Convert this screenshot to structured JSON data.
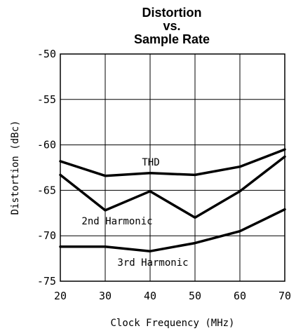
{
  "chart_data": {
    "type": "line",
    "title": [
      "Distortion",
      "vs.",
      "Sample Rate"
    ],
    "xlabel": "Clock Frequency (MHz)",
    "ylabel": "Distortion (dBc)",
    "x": [
      20,
      30,
      40,
      50,
      60,
      70
    ],
    "xlim": [
      20,
      70
    ],
    "ylim": [
      -75,
      -50
    ],
    "x_ticks": [
      "20",
      "30",
      "40",
      "50",
      "60",
      "70"
    ],
    "y_ticks": [
      "-50",
      "-55",
      "-60",
      "-65",
      "-70",
      "-75"
    ],
    "grid": true,
    "series": [
      {
        "name": "THD",
        "values": [
          -61.8,
          -63.4,
          -63.1,
          -63.3,
          -62.4,
          -60.5
        ]
      },
      {
        "name": "2nd Harmonic",
        "values": [
          -63.3,
          -67.2,
          -65.1,
          -68.0,
          -65.1,
          -61.3
        ]
      },
      {
        "name": "3rd Harmonic",
        "values": [
          -71.2,
          -71.2,
          -71.7,
          -70.8,
          -69.5,
          -67.1
        ]
      }
    ],
    "line_color": "#000000"
  }
}
